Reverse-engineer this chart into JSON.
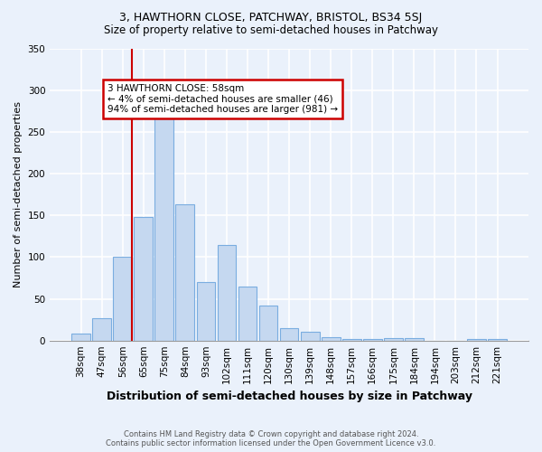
{
  "title": "3, HAWTHORN CLOSE, PATCHWAY, BRISTOL, BS34 5SJ",
  "subtitle": "Size of property relative to semi-detached houses in Patchway",
  "xlabel": "Distribution of semi-detached houses by size in Patchway",
  "ylabel": "Number of semi-detached properties",
  "footer_line1": "Contains HM Land Registry data © Crown copyright and database right 2024.",
  "footer_line2": "Contains public sector information licensed under the Open Government Licence v3.0.",
  "categories": [
    "38sqm",
    "47sqm",
    "56sqm",
    "65sqm",
    "75sqm",
    "84sqm",
    "93sqm",
    "102sqm",
    "111sqm",
    "120sqm",
    "130sqm",
    "139sqm",
    "148sqm",
    "157sqm",
    "166sqm",
    "175sqm",
    "184sqm",
    "194sqm",
    "203sqm",
    "212sqm",
    "221sqm"
  ],
  "values": [
    8,
    27,
    100,
    148,
    273,
    163,
    70,
    115,
    65,
    42,
    15,
    10,
    4,
    2,
    2,
    3,
    3,
    0,
    0,
    2,
    2
  ],
  "bar_color": "#c5d8f0",
  "bar_edge_color": "#7aade0",
  "background_color": "#eaf1fb",
  "grid_color": "#ffffff",
  "property_line_color": "#cc0000",
  "annotation_title": "3 HAWTHORN CLOSE: 58sqm",
  "annotation_line1": "← 4% of semi-detached houses are smaller (46)",
  "annotation_line2": "94% of semi-detached houses are larger (981) →",
  "annotation_box_color": "#ffffff",
  "annotation_box_edge_color": "#cc0000",
  "ylim": [
    0,
    350
  ],
  "yticks": [
    0,
    50,
    100,
    150,
    200,
    250,
    300,
    350
  ],
  "property_bin_index": 2,
  "title_fontsize": 9,
  "subtitle_fontsize": 8.5,
  "ylabel_fontsize": 8,
  "xlabel_fontsize": 9,
  "tick_fontsize": 7.5,
  "footer_fontsize": 6
}
